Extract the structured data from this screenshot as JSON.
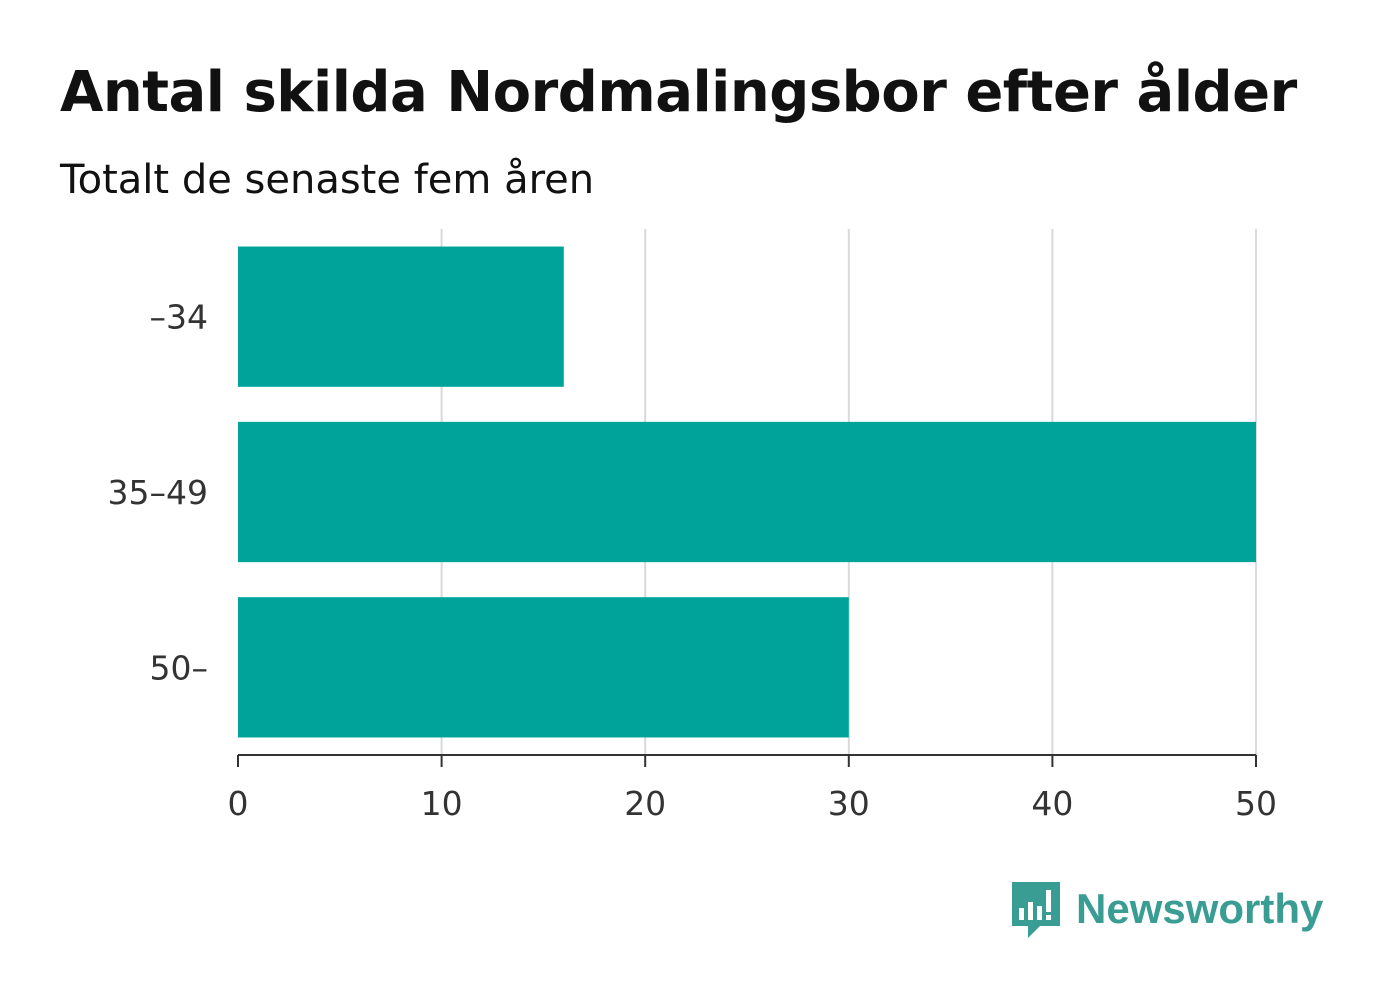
{
  "chart_data": {
    "type": "bar",
    "orientation": "horizontal",
    "title": "Antal skilda Nordmalingsbor efter ålder",
    "subtitle": "Totalt de senaste fem åren",
    "categories": [
      "–34",
      "35–49",
      "50–"
    ],
    "values": [
      16,
      50,
      30
    ],
    "xlim": [
      0,
      50
    ],
    "xticks": [
      0,
      10,
      20,
      30,
      40,
      50
    ],
    "grid": true,
    "bar_color": "#00a39a",
    "grid_color": "#d9d9d9",
    "axis_color": "#333333"
  },
  "logo": {
    "text": "Newsworthy",
    "icon": "newsworthy-bar-chart-icon",
    "color": "#3a9d93"
  }
}
